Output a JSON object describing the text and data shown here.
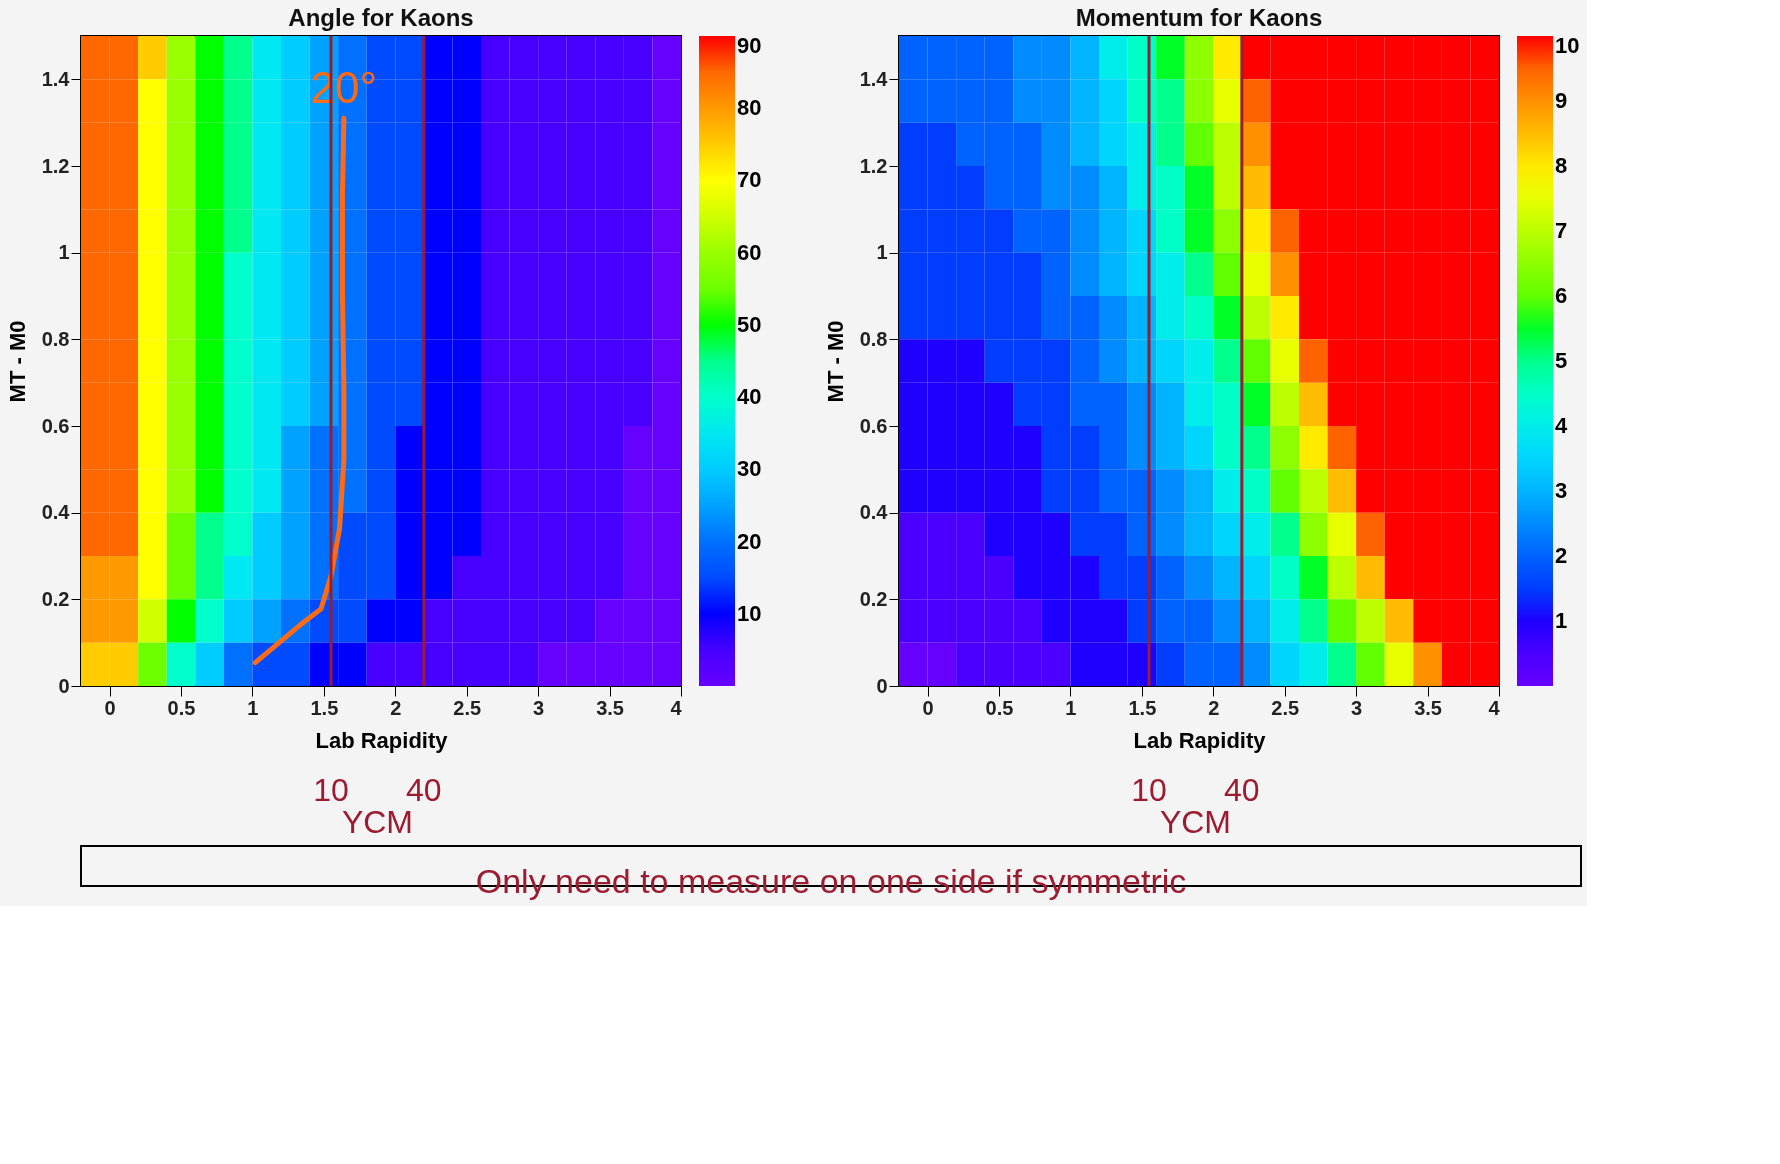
{
  "chart_data": [
    {
      "type": "heatmap",
      "title": "Angle for Kaons",
      "xlabel": "Lab Rapidity",
      "ylabel": "MT - M0",
      "x": [
        -0.1,
        0.1,
        0.3,
        0.5,
        0.7,
        0.9,
        1.1,
        1.3,
        1.5,
        1.7,
        1.9,
        2.1,
        2.3,
        2.5,
        2.7,
        2.9,
        3.1,
        3.3,
        3.5,
        3.7,
        3.9
      ],
      "y": [
        1.45,
        1.35,
        1.25,
        1.15,
        1.05,
        0.95,
        0.85,
        0.75,
        0.65,
        0.55,
        0.45,
        0.35,
        0.25,
        0.15,
        0.05
      ],
      "cells": [
        [
          85,
          85,
          75,
          60,
          50,
          45,
          35,
          30,
          25,
          20,
          15,
          15,
          10,
          10,
          5,
          5,
          5,
          5,
          5,
          5,
          0
        ],
        [
          85,
          85,
          70,
          60,
          50,
          45,
          35,
          30,
          25,
          20,
          15,
          15,
          10,
          10,
          5,
          5,
          5,
          5,
          5,
          5,
          0
        ],
        [
          85,
          85,
          70,
          60,
          50,
          45,
          35,
          30,
          25,
          20,
          15,
          15,
          10,
          10,
          5,
          5,
          5,
          5,
          5,
          5,
          0
        ],
        [
          85,
          85,
          70,
          60,
          50,
          45,
          35,
          30,
          25,
          20,
          15,
          15,
          10,
          10,
          5,
          5,
          5,
          5,
          5,
          5,
          0
        ],
        [
          85,
          85,
          70,
          60,
          50,
          45,
          35,
          30,
          25,
          20,
          15,
          15,
          10,
          10,
          5,
          5,
          5,
          5,
          5,
          5,
          0
        ],
        [
          85,
          85,
          70,
          60,
          50,
          40,
          35,
          30,
          25,
          20,
          15,
          15,
          10,
          10,
          5,
          5,
          5,
          5,
          5,
          5,
          0
        ],
        [
          85,
          85,
          70,
          60,
          50,
          40,
          35,
          30,
          25,
          20,
          15,
          15,
          10,
          10,
          5,
          5,
          5,
          5,
          5,
          5,
          0
        ],
        [
          85,
          85,
          70,
          60,
          50,
          40,
          35,
          30,
          25,
          20,
          15,
          15,
          10,
          10,
          5,
          5,
          5,
          5,
          5,
          5,
          0
        ],
        [
          85,
          85,
          70,
          60,
          50,
          40,
          35,
          30,
          25,
          20,
          15,
          15,
          10,
          10,
          5,
          5,
          5,
          5,
          5,
          5,
          0
        ],
        [
          85,
          85,
          70,
          60,
          50,
          40,
          35,
          25,
          20,
          20,
          15,
          10,
          10,
          10,
          5,
          5,
          5,
          5,
          5,
          0,
          0
        ],
        [
          85,
          85,
          70,
          60,
          50,
          40,
          35,
          25,
          20,
          20,
          15,
          10,
          10,
          10,
          5,
          5,
          5,
          5,
          5,
          0,
          0
        ],
        [
          85,
          85,
          70,
          55,
          45,
          40,
          30,
          25,
          20,
          15,
          15,
          10,
          10,
          10,
          5,
          5,
          5,
          5,
          5,
          0,
          0
        ],
        [
          80,
          80,
          70,
          55,
          45,
          35,
          30,
          25,
          20,
          15,
          15,
          10,
          10,
          5,
          5,
          5,
          5,
          5,
          5,
          0,
          0
        ],
        [
          80,
          80,
          65,
          50,
          40,
          30,
          25,
          20,
          15,
          15,
          10,
          10,
          5,
          5,
          5,
          5,
          5,
          5,
          0,
          0,
          0
        ],
        [
          75,
          75,
          55,
          40,
          30,
          20,
          15,
          15,
          10,
          10,
          5,
          5,
          5,
          5,
          5,
          5,
          0,
          0,
          0,
          0,
          0
        ]
      ],
      "clim": [
        0,
        90
      ],
      "cticks": [
        10,
        20,
        30,
        40,
        50,
        60,
        70,
        80,
        90
      ],
      "xlim": [
        -0.2,
        4
      ],
      "xticks": [
        0,
        0.5,
        1,
        1.5,
        2,
        2.5,
        3,
        3.5,
        4
      ],
      "ylim": [
        0,
        1.5
      ],
      "yticks": [
        0,
        0.2,
        0.4,
        0.6,
        0.8,
        1,
        1.2,
        1.4
      ],
      "series": [
        {
          "type": "line",
          "name": "20°",
          "color": "#ff6a13",
          "x": [
            1.02,
            1.35,
            1.48,
            1.55,
            1.61,
            1.64,
            1.64,
            1.63,
            1.63,
            1.64
          ],
          "values": [
            0.054,
            0.145,
            0.178,
            0.254,
            0.364,
            0.52,
            0.69,
            0.91,
            1.13,
            1.31
          ]
        }
      ],
      "ref_lines": [
        {
          "axis": "x",
          "value": 1.55,
          "color": "#9b1b30"
        },
        {
          "axis": "x",
          "value": 2.2,
          "color": "#9b1b30"
        }
      ],
      "annotations": [
        "10",
        "40",
        "YCM",
        "Only need to measure on one side if symmetric"
      ],
      "grid": false
    },
    {
      "type": "heatmap",
      "title": "Momentum for Kaons",
      "xlabel": "Lab Rapidity",
      "ylabel": "MT - M0",
      "x": [
        -0.1,
        0.1,
        0.3,
        0.5,
        0.7,
        0.9,
        1.1,
        1.3,
        1.5,
        1.7,
        1.9,
        2.1,
        2.3,
        2.5,
        2.7,
        2.9,
        3.1,
        3.3,
        3.5,
        3.7,
        3.9
      ],
      "y": [
        1.45,
        1.35,
        1.25,
        1.15,
        1.05,
        0.95,
        0.85,
        0.75,
        0.65,
        0.55,
        0.45,
        0.35,
        0.25,
        0.15,
        0.05
      ],
      "cells": [
        [
          2,
          2,
          2,
          2,
          2.5,
          2.5,
          3,
          4,
          4.5,
          5.5,
          6.5,
          8,
          10,
          10,
          10,
          10,
          10,
          10,
          10,
          10,
          10
        ],
        [
          2,
          2,
          2,
          2,
          2.5,
          2.5,
          3,
          3.5,
          4.5,
          5,
          6.5,
          7.5,
          9.5,
          10,
          10,
          10,
          10,
          10,
          10,
          10,
          10
        ],
        [
          1.5,
          1.5,
          2,
          2,
          2,
          2.5,
          3,
          3.5,
          4,
          5,
          6,
          7,
          9,
          10,
          10,
          10,
          10,
          10,
          10,
          10,
          10
        ],
        [
          1.5,
          1.5,
          1.5,
          2,
          2,
          2.5,
          2.5,
          3,
          4,
          4.5,
          5.5,
          7,
          8.5,
          10,
          10,
          10,
          10,
          10,
          10,
          10,
          10
        ],
        [
          1.5,
          1.5,
          1.5,
          1.5,
          2,
          2,
          2.5,
          3,
          3.5,
          4.5,
          5.5,
          6.5,
          8,
          9.5,
          10,
          10,
          10,
          10,
          10,
          10,
          10
        ],
        [
          1.5,
          1.5,
          1.5,
          1.5,
          1.5,
          2,
          2.5,
          3,
          3.5,
          4,
          5,
          6,
          7.5,
          9,
          10,
          10,
          10,
          10,
          10,
          10,
          10
        ],
        [
          1.5,
          1.5,
          1.5,
          1.5,
          1.5,
          2,
          2,
          2.5,
          3,
          4,
          4.5,
          5.5,
          7,
          8,
          10,
          10,
          10,
          10,
          10,
          10,
          10
        ],
        [
          1,
          1,
          1,
          1.5,
          1.5,
          1.5,
          2,
          2.5,
          3,
          3.5,
          4,
          5,
          6,
          7.5,
          9.5,
          10,
          10,
          10,
          10,
          10,
          10
        ],
        [
          1,
          1,
          1,
          1,
          1.5,
          1.5,
          2,
          2,
          2.5,
          3,
          4,
          4.5,
          5.5,
          7,
          8.5,
          10,
          10,
          10,
          10,
          10,
          10
        ],
        [
          1,
          1,
          1,
          1,
          1,
          1.5,
          1.5,
          2,
          2.5,
          3,
          3.5,
          4.5,
          5,
          6.5,
          8,
          9.5,
          10,
          10,
          10,
          10,
          10
        ],
        [
          1,
          1,
          1,
          1,
          1,
          1.5,
          1.5,
          2,
          2,
          2.5,
          3,
          4,
          4.5,
          6,
          7,
          8.5,
          10,
          10,
          10,
          10,
          10
        ],
        [
          0.5,
          0.5,
          0.5,
          1,
          1,
          1,
          1.5,
          1.5,
          2,
          2.5,
          3,
          3.5,
          4,
          5,
          6.5,
          7.5,
          9.5,
          10,
          10,
          10,
          10
        ],
        [
          0.5,
          0.5,
          0.5,
          0.5,
          1,
          1,
          1,
          1.5,
          1.5,
          2,
          2.5,
          3,
          3.5,
          4.5,
          5.5,
          7,
          8.5,
          10,
          10,
          10,
          10
        ],
        [
          0.5,
          0.5,
          0.5,
          0.5,
          0.5,
          1,
          1,
          1,
          1.5,
          2,
          2,
          2.5,
          3,
          4,
          5,
          6,
          7,
          8.5,
          10,
          10,
          10
        ],
        [
          0,
          0,
          0.5,
          0.5,
          0.5,
          0.5,
          1,
          1,
          1,
          1.5,
          2,
          2,
          2.5,
          3.5,
          4,
          5,
          6,
          7.5,
          9,
          10,
          10
        ]
      ],
      "clim": [
        0,
        10
      ],
      "cticks": [
        1,
        2,
        3,
        4,
        5,
        6,
        7,
        8,
        9,
        10
      ],
      "xlim": [
        -0.2,
        4
      ],
      "xticks": [
        0,
        0.5,
        1,
        1.5,
        2,
        2.5,
        3,
        3.5,
        4
      ],
      "ylim": [
        0,
        1.5
      ],
      "yticks": [
        0,
        0.2,
        0.4,
        0.6,
        0.8,
        1,
        1.2,
        1.4
      ],
      "ref_lines": [
        {
          "axis": "x",
          "value": 1.55,
          "color": "#9b1b30"
        },
        {
          "axis": "x",
          "value": 2.2,
          "color": "#9b1b30"
        }
      ],
      "annotations": [
        "10",
        "40",
        "YCM"
      ],
      "grid": false
    }
  ]
}
